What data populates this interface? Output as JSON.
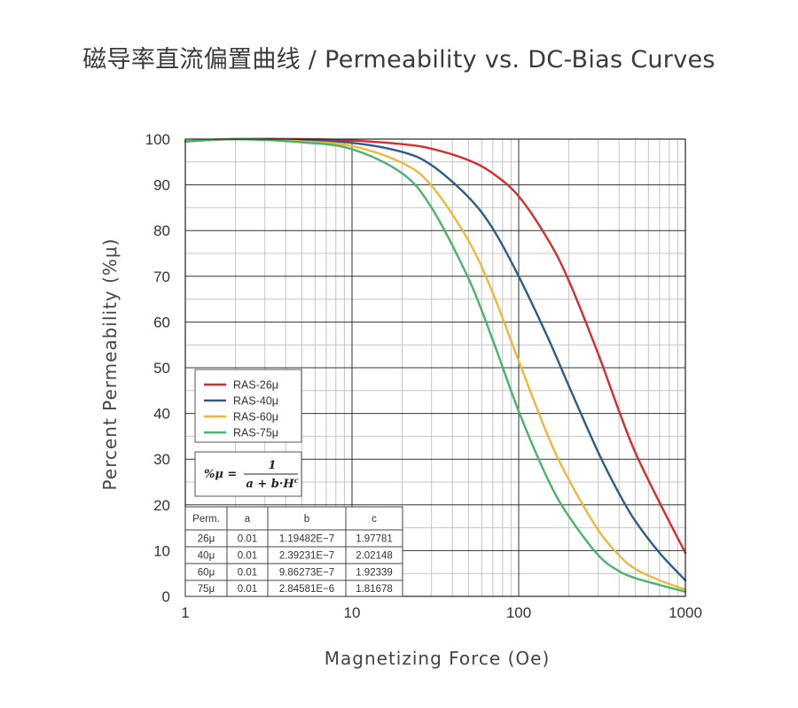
{
  "title": "磁导率直流偏置曲线 / Permeability vs. DC-Bias Curves",
  "chart_data": {
    "type": "line",
    "xscale": "log",
    "xlim": [
      1,
      1000
    ],
    "ylim": [
      0,
      100
    ],
    "xlabel": "Magnetizing Force (Oe)",
    "ylabel": "Percent Permeability (%μ)",
    "x_ticks": [
      "1",
      "10",
      "100",
      "1000"
    ],
    "y_ticks": [
      "0",
      "10",
      "20",
      "30",
      "40",
      "50",
      "60",
      "70",
      "80",
      "90",
      "100"
    ],
    "grid": true,
    "legend_position": "lower-left",
    "series": [
      {
        "name": "RAS-26μ",
        "color": "#d62c2c",
        "x": [
          1,
          2,
          5,
          10,
          20,
          30,
          50,
          70,
          100,
          150,
          200,
          300,
          400,
          500,
          700,
          1000
        ],
        "y": [
          99.5,
          100.0,
          100.0,
          99.7,
          98.9,
          97.9,
          95.4,
          92.5,
          87.5,
          78.0,
          69.0,
          53.0,
          40.5,
          31.5,
          20.5,
          9.5
        ]
      },
      {
        "name": "RAS-40μ",
        "color": "#2f5b86",
        "x": [
          1,
          2,
          5,
          10,
          20,
          30,
          50,
          70,
          100,
          150,
          200,
          300,
          400,
          500,
          700,
          1000
        ],
        "y": [
          99.5,
          100.0,
          99.7,
          99.2,
          97.2,
          94.3,
          87.3,
          80.4,
          70.0,
          56.5,
          46.0,
          31.5,
          22.5,
          16.5,
          9.5,
          3.5
        ]
      },
      {
        "name": "RAS-60μ",
        "color": "#f0b63a",
        "x": [
          1,
          2,
          5,
          10,
          20,
          30,
          50,
          70,
          100,
          150,
          200,
          300,
          400,
          500,
          700,
          1000
        ],
        "y": [
          99.5,
          100.0,
          99.5,
          98.5,
          94.8,
          89.8,
          77.8,
          66.3,
          51.5,
          35.0,
          25.5,
          14.5,
          9.0,
          6.0,
          3.5,
          1.5
        ]
      },
      {
        "name": "RAS-75μ",
        "color": "#49b36c",
        "x": [
          1,
          2,
          5,
          10,
          20,
          30,
          50,
          70,
          100,
          150,
          200,
          300,
          400,
          500,
          700,
          1000
        ],
        "y": [
          99.5,
          100.0,
          99.3,
          97.8,
          92.5,
          85.0,
          69.5,
          56.0,
          40.5,
          25.5,
          17.5,
          9.0,
          5.5,
          4.0,
          2.5,
          1.0
        ]
      }
    ],
    "formula": "%μ = 1 / (a + b·H^c)",
    "coefficient_table": {
      "headers": [
        "Perm.",
        "a",
        "b",
        "c"
      ],
      "rows": [
        [
          "26μ",
          "0.01",
          "1.19482E−7",
          "1.97781"
        ],
        [
          "40μ",
          "0.01",
          "2.39231E−7",
          "2.02148"
        ],
        [
          "60μ",
          "0.01",
          "9.86273E−7",
          "1.92339"
        ],
        [
          "75μ",
          "0.01",
          "2.84581E−6",
          "1.81678"
        ]
      ]
    }
  }
}
